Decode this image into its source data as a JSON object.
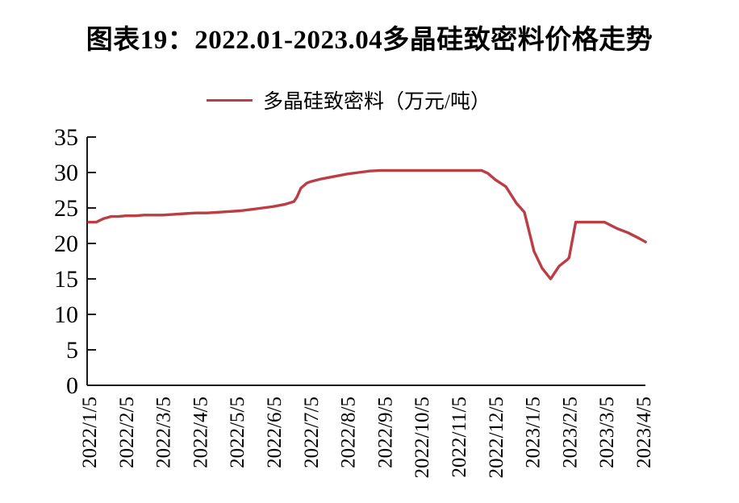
{
  "title": "图表19：2022.01-2023.04多晶硅致密料价格走势",
  "legend": {
    "label": "多晶硅致密料（万元/吨）"
  },
  "colors": {
    "line": "#BB3E44",
    "axis": "#1A1A1A",
    "text": "#000000",
    "background": "#FFFFFF"
  },
  "chart_data": {
    "type": "line",
    "title": "图表19：2022.01-2023.04多晶硅致密料价格走势",
    "ylabel": "",
    "xlabel": "",
    "unit": "万元/吨",
    "ylim": [
      0,
      35
    ],
    "y_ticks": [
      0,
      5,
      10,
      15,
      20,
      25,
      30,
      35
    ],
    "grid": false,
    "legend_position": "top-center",
    "x_tick_labels": [
      "2022/1/5",
      "2022/2/5",
      "2022/3/5",
      "2022/4/5",
      "2022/5/5",
      "2022/6/5",
      "2022/7/5",
      "2022/8/5",
      "2022/9/5",
      "2022/10/5",
      "2022/11/5",
      "2022/12/5",
      "2023/1/5",
      "2023/2/5",
      "2023/3/5",
      "2023/4/5"
    ],
    "x_unit": "months after 2022/1/5",
    "series": [
      {
        "name": "多晶硅致密料（万元/吨）",
        "points": [
          [
            0.0,
            23.0
          ],
          [
            0.2,
            23.0
          ],
          [
            0.4,
            23.5
          ],
          [
            0.6,
            23.8
          ],
          [
            0.8,
            23.8
          ],
          [
            1.0,
            23.9
          ],
          [
            1.25,
            23.9
          ],
          [
            1.5,
            24.0
          ],
          [
            1.75,
            24.0
          ],
          [
            2.0,
            24.0
          ],
          [
            2.3,
            24.1
          ],
          [
            2.6,
            24.2
          ],
          [
            2.9,
            24.3
          ],
          [
            3.2,
            24.3
          ],
          [
            3.5,
            24.4
          ],
          [
            3.8,
            24.5
          ],
          [
            4.1,
            24.6
          ],
          [
            4.4,
            24.8
          ],
          [
            4.7,
            25.0
          ],
          [
            5.0,
            25.2
          ],
          [
            5.3,
            25.5
          ],
          [
            5.55,
            25.9
          ],
          [
            5.63,
            26.5
          ],
          [
            5.74,
            27.8
          ],
          [
            5.9,
            28.5
          ],
          [
            6.0,
            28.7
          ],
          [
            6.3,
            29.1
          ],
          [
            6.6,
            29.4
          ],
          [
            7.0,
            29.8
          ],
          [
            7.3,
            30.0
          ],
          [
            7.6,
            30.2
          ],
          [
            7.9,
            30.3
          ],
          [
            8.5,
            30.3
          ],
          [
            9.0,
            30.3
          ],
          [
            9.5,
            30.3
          ],
          [
            10.0,
            30.3
          ],
          [
            10.63,
            30.3
          ],
          [
            10.8,
            29.9
          ],
          [
            11.0,
            29.0
          ],
          [
            11.29,
            28.0
          ],
          [
            11.57,
            25.7
          ],
          [
            11.79,
            24.4
          ],
          [
            12.05,
            18.9
          ],
          [
            12.27,
            16.5
          ],
          [
            12.5,
            15.0
          ],
          [
            12.73,
            16.8
          ],
          [
            12.95,
            17.7
          ],
          [
            13.0,
            18.0
          ],
          [
            13.18,
            23.0
          ],
          [
            13.6,
            23.0
          ],
          [
            13.95,
            23.0
          ],
          [
            14.0,
            22.9
          ],
          [
            14.3,
            22.1
          ],
          [
            14.6,
            21.5
          ],
          [
            14.9,
            20.7
          ],
          [
            15.07,
            20.2
          ]
        ]
      }
    ]
  }
}
